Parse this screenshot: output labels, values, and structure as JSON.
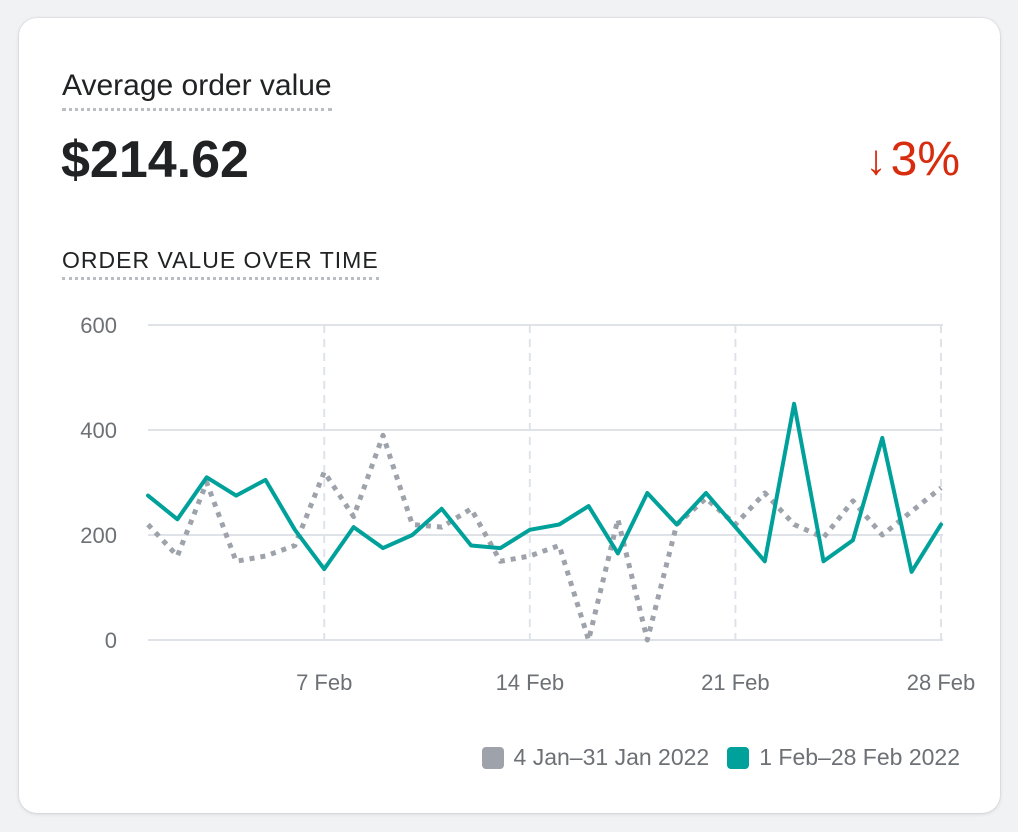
{
  "card": {
    "title": "Average order value",
    "value": "$214.62",
    "change_arrow": "↓",
    "change_text": "3%",
    "change_color": "#d72c0d",
    "chart_title": "ORDER VALUE OVER TIME"
  },
  "colors": {
    "current": "#00a19a",
    "previous": "#9ea3ab",
    "grid": "#dfe3e8"
  },
  "chart_data": {
    "type": "line",
    "title": "ORDER VALUE OVER TIME",
    "xlabel": "",
    "ylabel": "",
    "ylim": [
      0,
      600
    ],
    "yticks": [
      0,
      200,
      400,
      600
    ],
    "xticks": [
      {
        "day": 7,
        "label": "7 Feb"
      },
      {
        "day": 14,
        "label": "14 Feb"
      },
      {
        "day": 21,
        "label": "21 Feb"
      },
      {
        "day": 28,
        "label": "28 Feb"
      }
    ],
    "x": [
      "1 Feb",
      "2 Feb",
      "3 Feb",
      "4 Feb",
      "5 Feb",
      "6 Feb",
      "7 Feb",
      "8 Feb",
      "9 Feb",
      "10 Feb",
      "11 Feb",
      "12 Feb",
      "13 Feb",
      "14 Feb",
      "15 Feb",
      "16 Feb",
      "17 Feb",
      "18 Feb",
      "19 Feb",
      "20 Feb",
      "21 Feb",
      "22 Feb",
      "23 Feb",
      "24 Feb",
      "25 Feb",
      "26 Feb",
      "27 Feb",
      "28 Feb"
    ],
    "grid": true,
    "legend_position": "bottom-right",
    "series": [
      {
        "name": "4 Jan–31 Jan 2022",
        "style": "dotted",
        "values": [
          220,
          160,
          300,
          150,
          160,
          180,
          320,
          235,
          390,
          220,
          215,
          250,
          150,
          160,
          180,
          0,
          230,
          0,
          220,
          270,
          220,
          280,
          220,
          195,
          265,
          200,
          245,
          290
        ]
      },
      {
        "name": "1 Feb–28 Feb 2022",
        "style": "solid",
        "values": [
          275,
          230,
          310,
          275,
          305,
          210,
          135,
          215,
          175,
          200,
          250,
          180,
          175,
          210,
          220,
          255,
          165,
          280,
          220,
          280,
          215,
          150,
          450,
          150,
          190,
          385,
          130,
          220
        ]
      }
    ]
  },
  "legend": {
    "previous_label": "4 Jan–31 Jan 2022",
    "current_label": "1 Feb–28 Feb 2022"
  }
}
